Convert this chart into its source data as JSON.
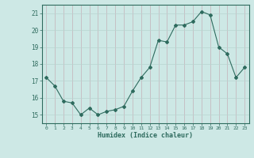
{
  "x": [
    0,
    1,
    2,
    3,
    4,
    5,
    6,
    7,
    8,
    9,
    10,
    11,
    12,
    13,
    14,
    15,
    16,
    17,
    18,
    19,
    20,
    21,
    22,
    23
  ],
  "y": [
    17.2,
    16.7,
    15.8,
    15.7,
    15.0,
    15.4,
    15.0,
    15.2,
    15.3,
    15.5,
    16.4,
    17.2,
    17.8,
    19.4,
    19.3,
    20.3,
    20.3,
    20.5,
    21.1,
    20.9,
    19.0,
    18.6,
    17.2,
    17.8
  ],
  "xlim": [
    -0.5,
    23.5
  ],
  "ylim": [
    14.5,
    21.5
  ],
  "yticks": [
    15,
    16,
    17,
    18,
    19,
    20,
    21
  ],
  "xticks": [
    0,
    1,
    2,
    3,
    4,
    5,
    6,
    7,
    8,
    9,
    10,
    11,
    12,
    13,
    14,
    15,
    16,
    17,
    18,
    19,
    20,
    21,
    22,
    23
  ],
  "xlabel": "Humidex (Indice chaleur)",
  "line_color": "#2e6b5e",
  "marker": "D",
  "marker_size": 2.0,
  "bg_color": "#cde8e5",
  "grid_color_v": "#c4b0b8",
  "grid_color_h": "#b8d4d0",
  "tick_color": "#2e6b5e",
  "xlabel_color": "#2e6b5e"
}
